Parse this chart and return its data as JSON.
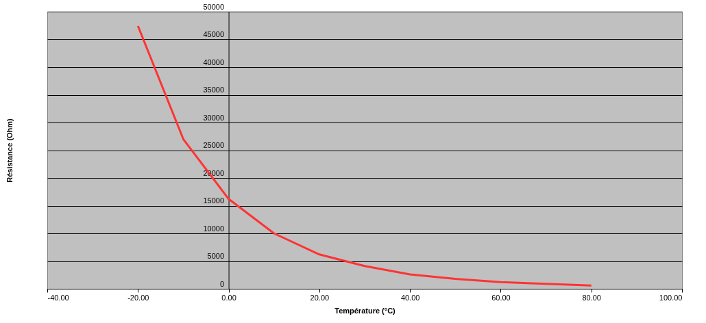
{
  "chart_data": {
    "type": "line",
    "xlabel": "Température (°C)",
    "ylabel": "Résistance (Ohm)",
    "x": [
      -20,
      -10,
      0,
      10,
      20,
      30,
      40,
      50,
      60,
      70,
      80
    ],
    "series": [
      {
        "color": "#ff3333",
        "values": [
          47400,
          27000,
          16200,
          10000,
          6200,
          4100,
          2600,
          1800,
          1200,
          900,
          600
        ]
      }
    ],
    "xlim": [
      -40,
      100
    ],
    "ylim": [
      0,
      50000
    ],
    "xticks": [
      {
        "value": -40,
        "label": "-40.00"
      },
      {
        "value": -20,
        "label": "-20.00"
      },
      {
        "value": 0,
        "label": "0.00"
      },
      {
        "value": 20,
        "label": "20.00"
      },
      {
        "value": 40,
        "label": "40.00"
      },
      {
        "value": 60,
        "label": "60.00"
      },
      {
        "value": 80,
        "label": "80.00"
      },
      {
        "value": 100,
        "label": "100.00"
      }
    ],
    "yticks": [
      0,
      5000,
      10000,
      15000,
      20000,
      25000,
      30000,
      35000,
      40000,
      45000,
      50000
    ],
    "grid": "y",
    "marker": "none",
    "line_style": "solid"
  }
}
